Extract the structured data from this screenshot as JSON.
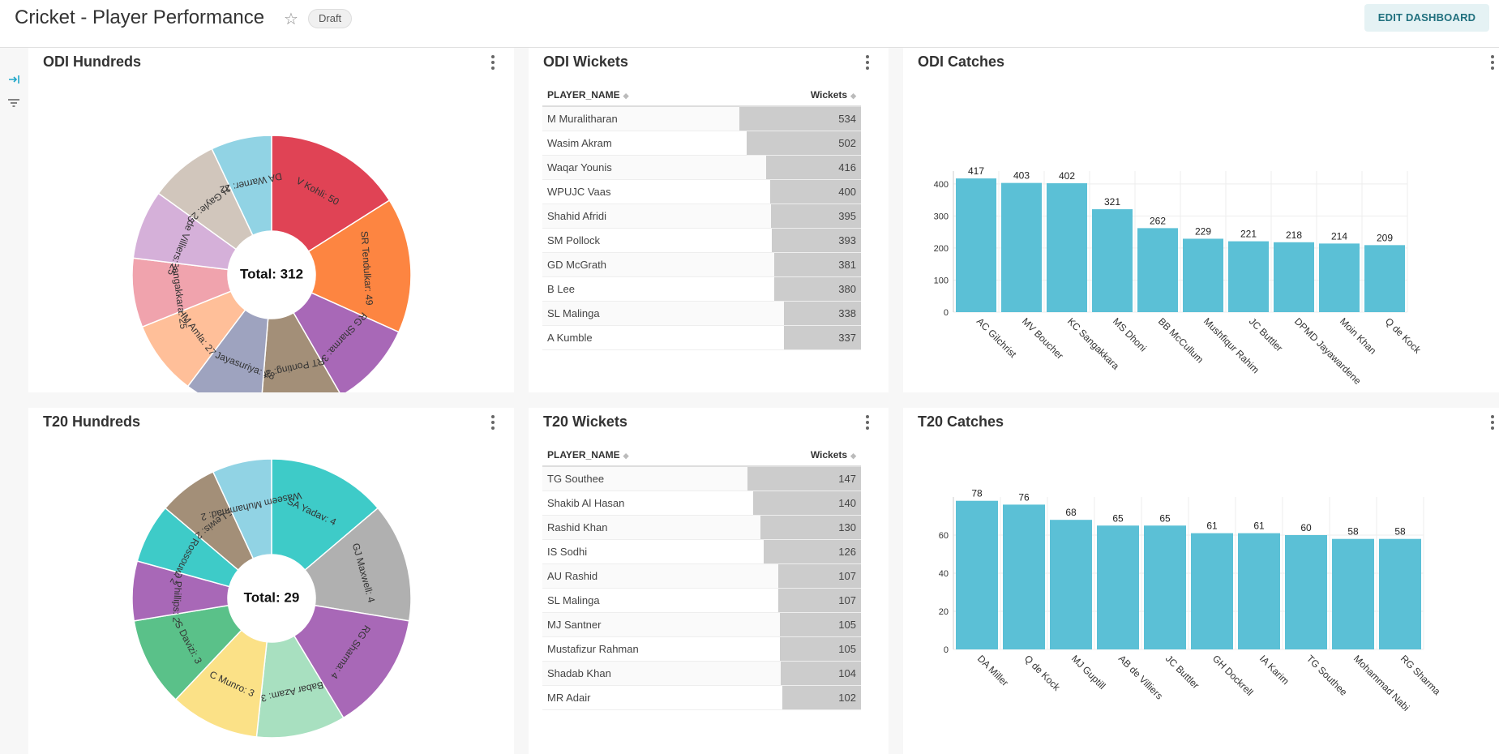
{
  "header": {
    "title": "Cricket - Player Performance",
    "badge": "Draft",
    "edit_label": "EDIT DASHBOARD"
  },
  "panels": {
    "odi_hundreds": {
      "title": "ODI Hundreds"
    },
    "odi_wickets": {
      "title": "ODI Wickets"
    },
    "odi_catches": {
      "title": "ODI Catches"
    },
    "t20_hundreds": {
      "title": "T20 Hundreds"
    },
    "t20_wickets": {
      "title": "T20 Wickets"
    },
    "t20_catches": {
      "title": "T20 Catches"
    }
  },
  "table_headers": {
    "player": "PLAYER_NAME",
    "wickets": "Wickets"
  },
  "colors": {
    "bar": "#5bc0d6",
    "table_bar": "#cccccc",
    "accent": "#20a7c9"
  },
  "chart_data": [
    {
      "id": "odi_hundreds",
      "type": "pie",
      "total_label": "Total: 312",
      "slices": [
        {
          "label": "V Kohli: 50",
          "value": 50,
          "color": "#e04355"
        },
        {
          "label": "SR Tendulkar: 49",
          "value": 49,
          "color": "#fd8541"
        },
        {
          "label": "RG Sharma: 31",
          "value": 31,
          "color": "#a868b7"
        },
        {
          "label": "RT Ponting: 30",
          "value": 30,
          "color": "#a38f78"
        },
        {
          "label": "ST Jayasuriya: 28",
          "value": 28,
          "color": "#9ea3bf"
        },
        {
          "label": "HM Amla: 27",
          "value": 27,
          "color": "#ffbf99"
        },
        {
          "label": "KC Sangakkara: 25",
          "value": 25,
          "color": "#f0a3ad"
        },
        {
          "label": "AB de Villiers: 25",
          "value": 25,
          "color": "#d5b0d9"
        },
        {
          "label": "CH Gayle: 25",
          "value": 25,
          "color": "#d1c6bc"
        },
        {
          "label": "DA Warner: 22",
          "value": 22,
          "color": "#91d3e4"
        }
      ]
    },
    {
      "id": "odi_wickets",
      "type": "table",
      "columns": [
        "PLAYER_NAME",
        "Wickets"
      ],
      "rows": [
        [
          "M Muralitharan",
          534
        ],
        [
          "Wasim Akram",
          502
        ],
        [
          "Waqar Younis",
          416
        ],
        [
          "WPUJC Vaas",
          400
        ],
        [
          "Shahid Afridi",
          395
        ],
        [
          "SM Pollock",
          393
        ],
        [
          "GD McGrath",
          381
        ],
        [
          "B Lee",
          380
        ],
        [
          "SL Malinga",
          338
        ],
        [
          "A Kumble",
          337
        ]
      ]
    },
    {
      "id": "odi_catches",
      "type": "bar",
      "categories": [
        "AC Gilchrist",
        "MV Boucher",
        "KC Sangakkara",
        "MS Dhoni",
        "BB McCullum",
        "Mushfiqur Rahim",
        "JC Buttler",
        "DPMD Jayawardene",
        "Moin Khan",
        "Q de Kock"
      ],
      "values": [
        417,
        403,
        402,
        321,
        262,
        229,
        221,
        218,
        214,
        209
      ],
      "ylim": [
        0,
        440
      ],
      "yticks": [
        0,
        100,
        200,
        300,
        400
      ],
      "grid": true
    },
    {
      "id": "t20_hundreds",
      "type": "pie",
      "total_label": "Total: 29",
      "slices": [
        {
          "label": "SA Yadav: 4",
          "value": 4,
          "color": "#3ecbc8"
        },
        {
          "label": "GJ Maxwell: 4",
          "value": 4,
          "color": "#b0b0b0"
        },
        {
          "label": "RG Sharma: 4",
          "value": 4,
          "color": "#a868b7"
        },
        {
          "label": "Babar Azam: 3",
          "value": 3,
          "color": "#a8e0c0"
        },
        {
          "label": "C Munro: 3",
          "value": 3,
          "color": "#fbe187"
        },
        {
          "label": "S Davizi: 3",
          "value": 3,
          "color": "#5ac189"
        },
        {
          "label": "GD Phillips: 2",
          "value": 2,
          "color": "#a868b7"
        },
        {
          "label": "RR Rossouw: 2",
          "value": 2,
          "color": "#3ecbc8"
        },
        {
          "label": "E Lewis: 2",
          "value": 2,
          "color": "#a38f78"
        },
        {
          "label": "Waseem Muhammad: 2",
          "value": 2,
          "color": "#91d3e4"
        }
      ]
    },
    {
      "id": "t20_wickets",
      "type": "table",
      "columns": [
        "PLAYER_NAME",
        "Wickets"
      ],
      "rows": [
        [
          "TG Southee",
          147
        ],
        [
          "Shakib Al Hasan",
          140
        ],
        [
          "Rashid Khan",
          130
        ],
        [
          "IS Sodhi",
          126
        ],
        [
          "AU Rashid",
          107
        ],
        [
          "SL Malinga",
          107
        ],
        [
          "MJ Santner",
          105
        ],
        [
          "Mustafizur Rahman",
          105
        ],
        [
          "Shadab Khan",
          104
        ],
        [
          "MR Adair",
          102
        ]
      ]
    },
    {
      "id": "t20_catches",
      "type": "bar",
      "categories": [
        "DA Miller",
        "Q de Kock",
        "MJ Guptill",
        "AB de Villiers",
        "JC Buttler",
        "GH Dockrell",
        "IA Karim",
        "TG Southee",
        "Mohammad Nabi",
        "RG Sharma"
      ],
      "values": [
        78,
        76,
        68,
        65,
        65,
        61,
        61,
        60,
        58,
        58
      ],
      "ylim": [
        0,
        80
      ],
      "yticks": [
        0,
        20,
        40,
        60
      ],
      "grid": true
    }
  ]
}
